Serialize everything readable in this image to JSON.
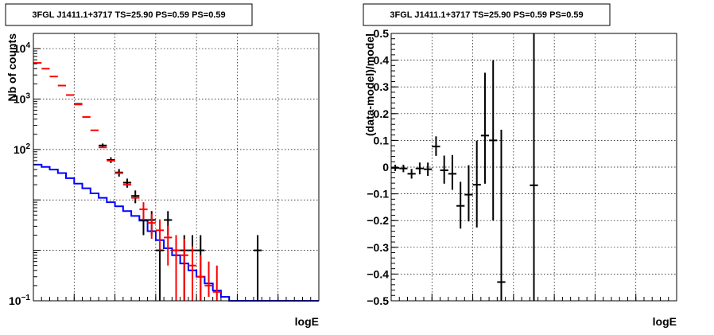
{
  "chart_data": [
    {
      "type": "line",
      "title": "3FGL J1411.1+3717 TS=25.90 PS=0.59 PS=0.59",
      "xlabel": "logE",
      "ylabel": "Nb of counts",
      "log_y": true,
      "grid": true,
      "xlim": [
        2,
        5.5
      ],
      "ylim": [
        0.1,
        20000
      ],
      "x_ticks": [
        "2",
        "2.5",
        "3",
        "3.5",
        "4",
        "4.5",
        "5",
        "5.5"
      ],
      "y_ticks": [
        "10^{-1}",
        "1",
        "10",
        "10^{2}",
        "10^{3}",
        "10^{4}"
      ],
      "bin_width": 0.1,
      "series": [
        {
          "color": "#000000",
          "style": "points",
          "x": [
            2.55,
            2.85,
            2.95,
            3.05,
            3.15,
            3.25,
            3.35,
            3.45,
            3.55,
            3.65,
            3.75,
            3.85,
            3.95,
            4.05,
            4.75
          ],
          "y": [
            800,
            120,
            62,
            35,
            22,
            12,
            4,
            4,
            1,
            4,
            1,
            1,
            1,
            1,
            1
          ],
          "err_low": [
            30,
            11,
            8,
            6,
            4.5,
            3.4,
            2.0,
            2.0,
            1.0,
            2.0,
            1.0,
            1.0,
            1.0,
            1.0,
            1.0
          ],
          "err_high": [
            30,
            11,
            8,
            6,
            4.5,
            3.4,
            2.0,
            2.0,
            1.0,
            2.0,
            1.0,
            1.0,
            1.0,
            1.0,
            1.0
          ]
        },
        {
          "color": "#ff0000",
          "style": "points",
          "x": [
            2.05,
            2.15,
            2.25,
            2.35,
            2.45,
            2.55,
            2.65,
            2.75,
            2.85,
            2.95,
            3.05,
            3.15,
            3.25,
            3.35,
            3.45,
            3.55,
            3.65,
            3.75,
            3.85,
            3.95,
            4.05,
            4.15,
            4.25
          ],
          "y": [
            5200,
            4000,
            2800,
            1850,
            1200,
            780,
            440,
            240,
            110,
            60,
            34,
            20,
            11,
            6.5,
            3.5,
            2.5,
            1.8,
            1.0,
            0.8,
            0.5,
            0.3,
            0.2,
            0.15
          ],
          "err_low": [
            0,
            0,
            0,
            0,
            0,
            0,
            0,
            0,
            0,
            0,
            0,
            0,
            0,
            2.5,
            1.8,
            1.5,
            1.3,
            1.0,
            0.7,
            0.4,
            0.2,
            0.08,
            0.05
          ],
          "err_high": [
            0,
            0,
            0,
            0,
            0,
            0,
            0,
            0,
            0,
            0,
            0,
            0,
            0,
            2.5,
            1.8,
            1.6,
            1.3,
            1.0,
            0.9,
            0.7,
            0.5,
            0.4,
            0.35
          ]
        },
        {
          "color": "#0000ff",
          "style": "step",
          "x": [
            2.05,
            2.15,
            2.25,
            2.35,
            2.45,
            2.55,
            2.65,
            2.75,
            2.85,
            2.95,
            3.05,
            3.15,
            3.25,
            3.35,
            3.45,
            3.55,
            3.65,
            3.75,
            3.85,
            3.95,
            4.05,
            4.15,
            4.25,
            4.35,
            4.45,
            4.55,
            4.65,
            4.75,
            4.85,
            4.95,
            5.05,
            5.15,
            5.25,
            5.35,
            5.45
          ],
          "y": [
            50,
            45,
            40,
            34,
            27,
            21,
            17,
            13.5,
            11,
            9,
            7.5,
            6,
            4.8,
            3.9,
            2.4,
            1.6,
            1.1,
            0.8,
            0.55,
            0.4,
            0.3,
            0.22,
            0.16,
            0.12,
            0.1,
            0.1,
            0.1,
            0.1,
            0.1,
            0.1,
            0.1,
            0.1,
            0.1,
            0.1,
            0.1
          ]
        }
      ]
    },
    {
      "type": "scatter",
      "title": "3FGL J1411.1+3717 TS=25.90 PS=0.59 PS=0.59",
      "xlabel": "logE",
      "ylabel": "(data-model)/model",
      "grid": true,
      "xlim": [
        2,
        5.5
      ],
      "ylim": [
        -0.5,
        0.5
      ],
      "x_ticks": [
        "2",
        "2.5",
        "3",
        "3.5",
        "4",
        "4.5",
        "5",
        "5.5"
      ],
      "y_ticks": [
        "-0.5",
        "-0.4",
        "-0.3",
        "-0.2",
        "-0.1",
        "0",
        "0.1",
        "0.2",
        "0.3",
        "0.4",
        "0.5"
      ],
      "bin_width": 0.1,
      "series": [
        {
          "color": "#000000",
          "x": [
            2.05,
            2.15,
            2.25,
            2.35,
            2.45,
            2.55,
            2.65,
            2.75,
            2.85,
            2.95,
            3.05,
            3.15,
            3.25,
            3.35,
            3.75
          ],
          "y": [
            -0.003,
            -0.005,
            -0.025,
            -0.005,
            -0.008,
            0.077,
            -0.012,
            -0.025,
            -0.145,
            -0.103,
            -0.066,
            0.118,
            0.1,
            -0.43,
            -0.068
          ],
          "err_low": [
            0.012,
            0.014,
            0.018,
            0.022,
            0.025,
            0.035,
            0.05,
            0.06,
            0.085,
            0.1,
            0.16,
            0.18,
            0.3,
            0.57,
            0.432
          ],
          "err_high": [
            0.012,
            0.014,
            0.018,
            0.022,
            0.025,
            0.038,
            0.055,
            0.07,
            0.09,
            0.11,
            0.165,
            0.235,
            0.3,
            0.57,
            0.568
          ]
        }
      ]
    }
  ]
}
